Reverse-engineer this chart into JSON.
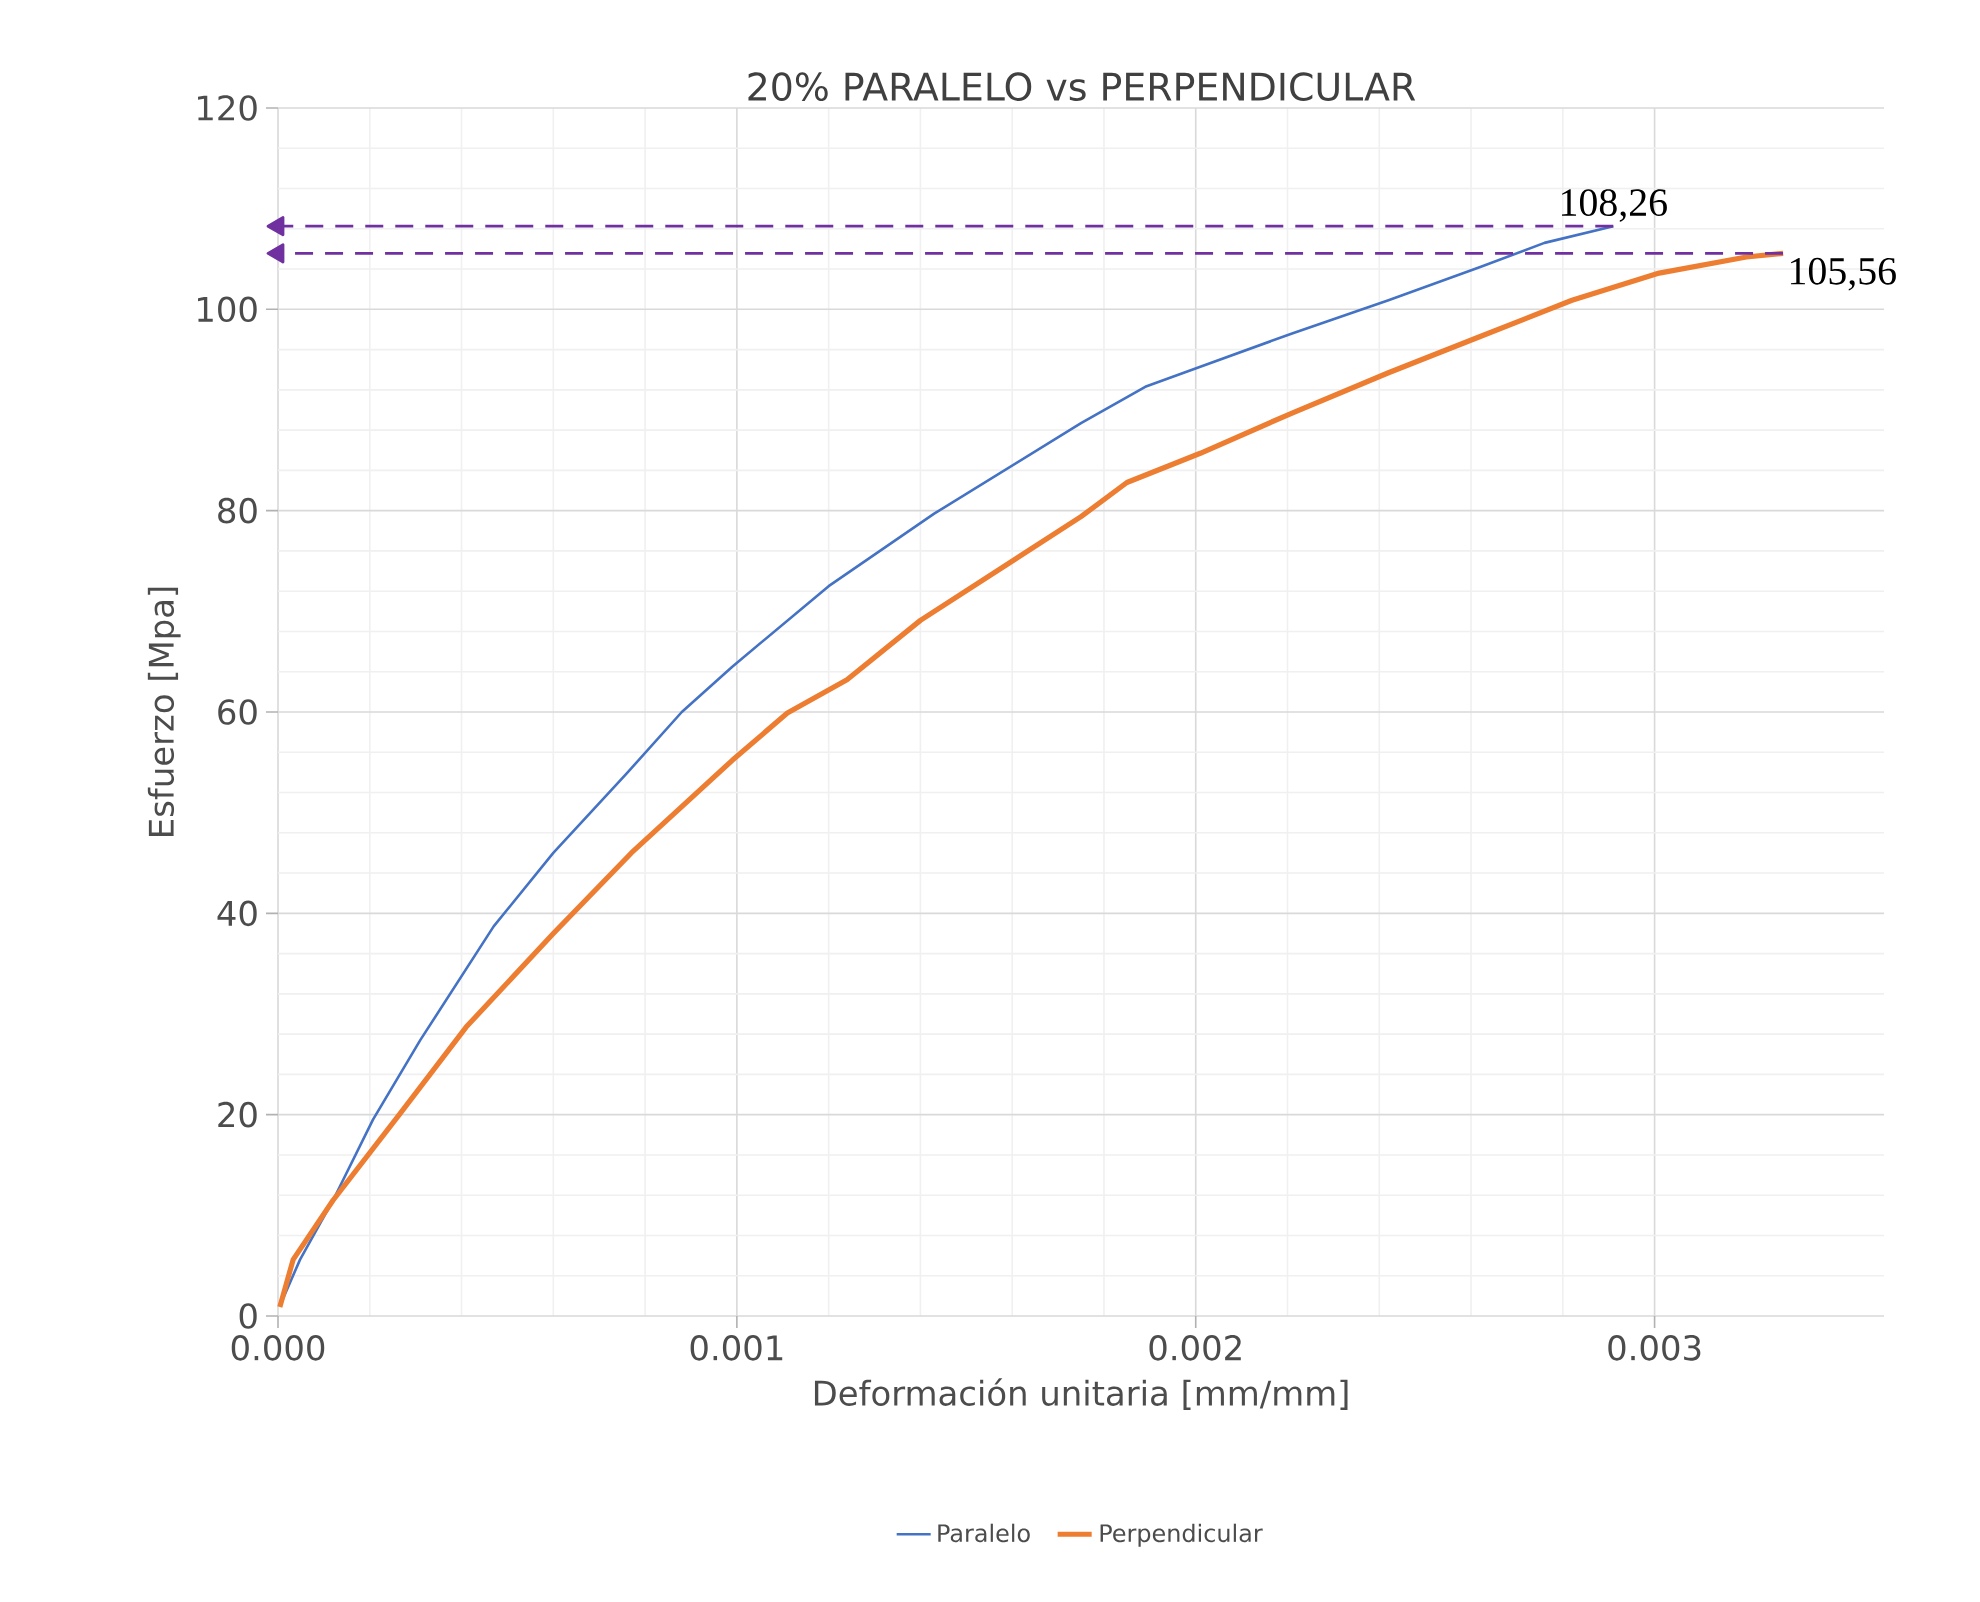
{
  "chart_data": {
    "type": "line",
    "title": "20% PARALELO vs PERPENDICULAR",
    "xlabel": "Deformación unitaria [mm/mm]",
    "ylabel": "Esfuerzo [Mpa]",
    "xlim": [
      0,
      0.0035
    ],
    "ylim": [
      0,
      120
    ],
    "xticks": [
      {
        "value": 0,
        "label": "0.000"
      },
      {
        "value": 0.001,
        "label": "0.001"
      },
      {
        "value": 0.002,
        "label": "0.002"
      },
      {
        "value": 0.003,
        "label": "0.003"
      }
    ],
    "yticks": [
      0,
      20,
      40,
      60,
      80,
      100,
      120
    ],
    "grid": true,
    "legend": "bottom",
    "marker": "none",
    "line_style": "solid",
    "series": [
      {
        "name": "Paralelo",
        "color": "#4472c4",
        "x": [
          4e-06,
          4.8e-05,
          0.00012,
          0.000207,
          0.00031,
          0.00047,
          0.0006,
          0.00076,
          0.00088,
          0.00099,
          0.0012,
          0.00143,
          0.00175,
          0.00189,
          0.00201,
          0.00221,
          0.00242,
          0.00262,
          0.00276,
          0.00291
        ],
        "values": [
          1.0,
          5.6,
          11.5,
          19.5,
          27.4,
          38.7,
          46,
          53.9,
          60,
          64.5,
          72.5,
          79.7,
          88.7,
          92.3,
          94.3,
          97.6,
          100.9,
          104.2,
          106.6,
          108.26
        ]
      },
      {
        "name": "Perpendicular",
        "color": "#ed7d31",
        "x": [
          4e-06,
          3.3e-05,
          0.00012,
          0.000266,
          0.00041,
          0.0006,
          0.00077,
          0.00099,
          0.00111,
          0.00124,
          0.0014,
          0.00175,
          0.00185,
          0.00201,
          0.00221,
          0.00242,
          0.00262,
          0.00282,
          0.00301,
          0.0032,
          0.00328
        ],
        "values": [
          0.9,
          5.6,
          11.5,
          20.1,
          28.7,
          38,
          46,
          55.2,
          59.9,
          63.2,
          69.1,
          79.4,
          82.8,
          85.7,
          89.7,
          93.7,
          97.3,
          100.9,
          103.6,
          105.2,
          105.56
        ]
      },
      {
        "type": "line",
        "color": "#7030a0",
        "line_style": "dashed",
        "marker": "triangle",
        "x": [
          0.00291,
          0
        ],
        "values": [
          108.26,
          108.26
        ]
      },
      {
        "type": "line",
        "color": "#7030a0",
        "line_style": "dashed",
        "marker": "triangle",
        "x": [
          0.00328,
          0
        ],
        "values": [
          105.56,
          105.56
        ]
      }
    ],
    "annotations": [
      {
        "text": "108,26",
        "x": 0.00291,
        "y": 108.26
      },
      {
        "text": "105,56",
        "x": 0.00328,
        "y": 105.56
      }
    ]
  }
}
